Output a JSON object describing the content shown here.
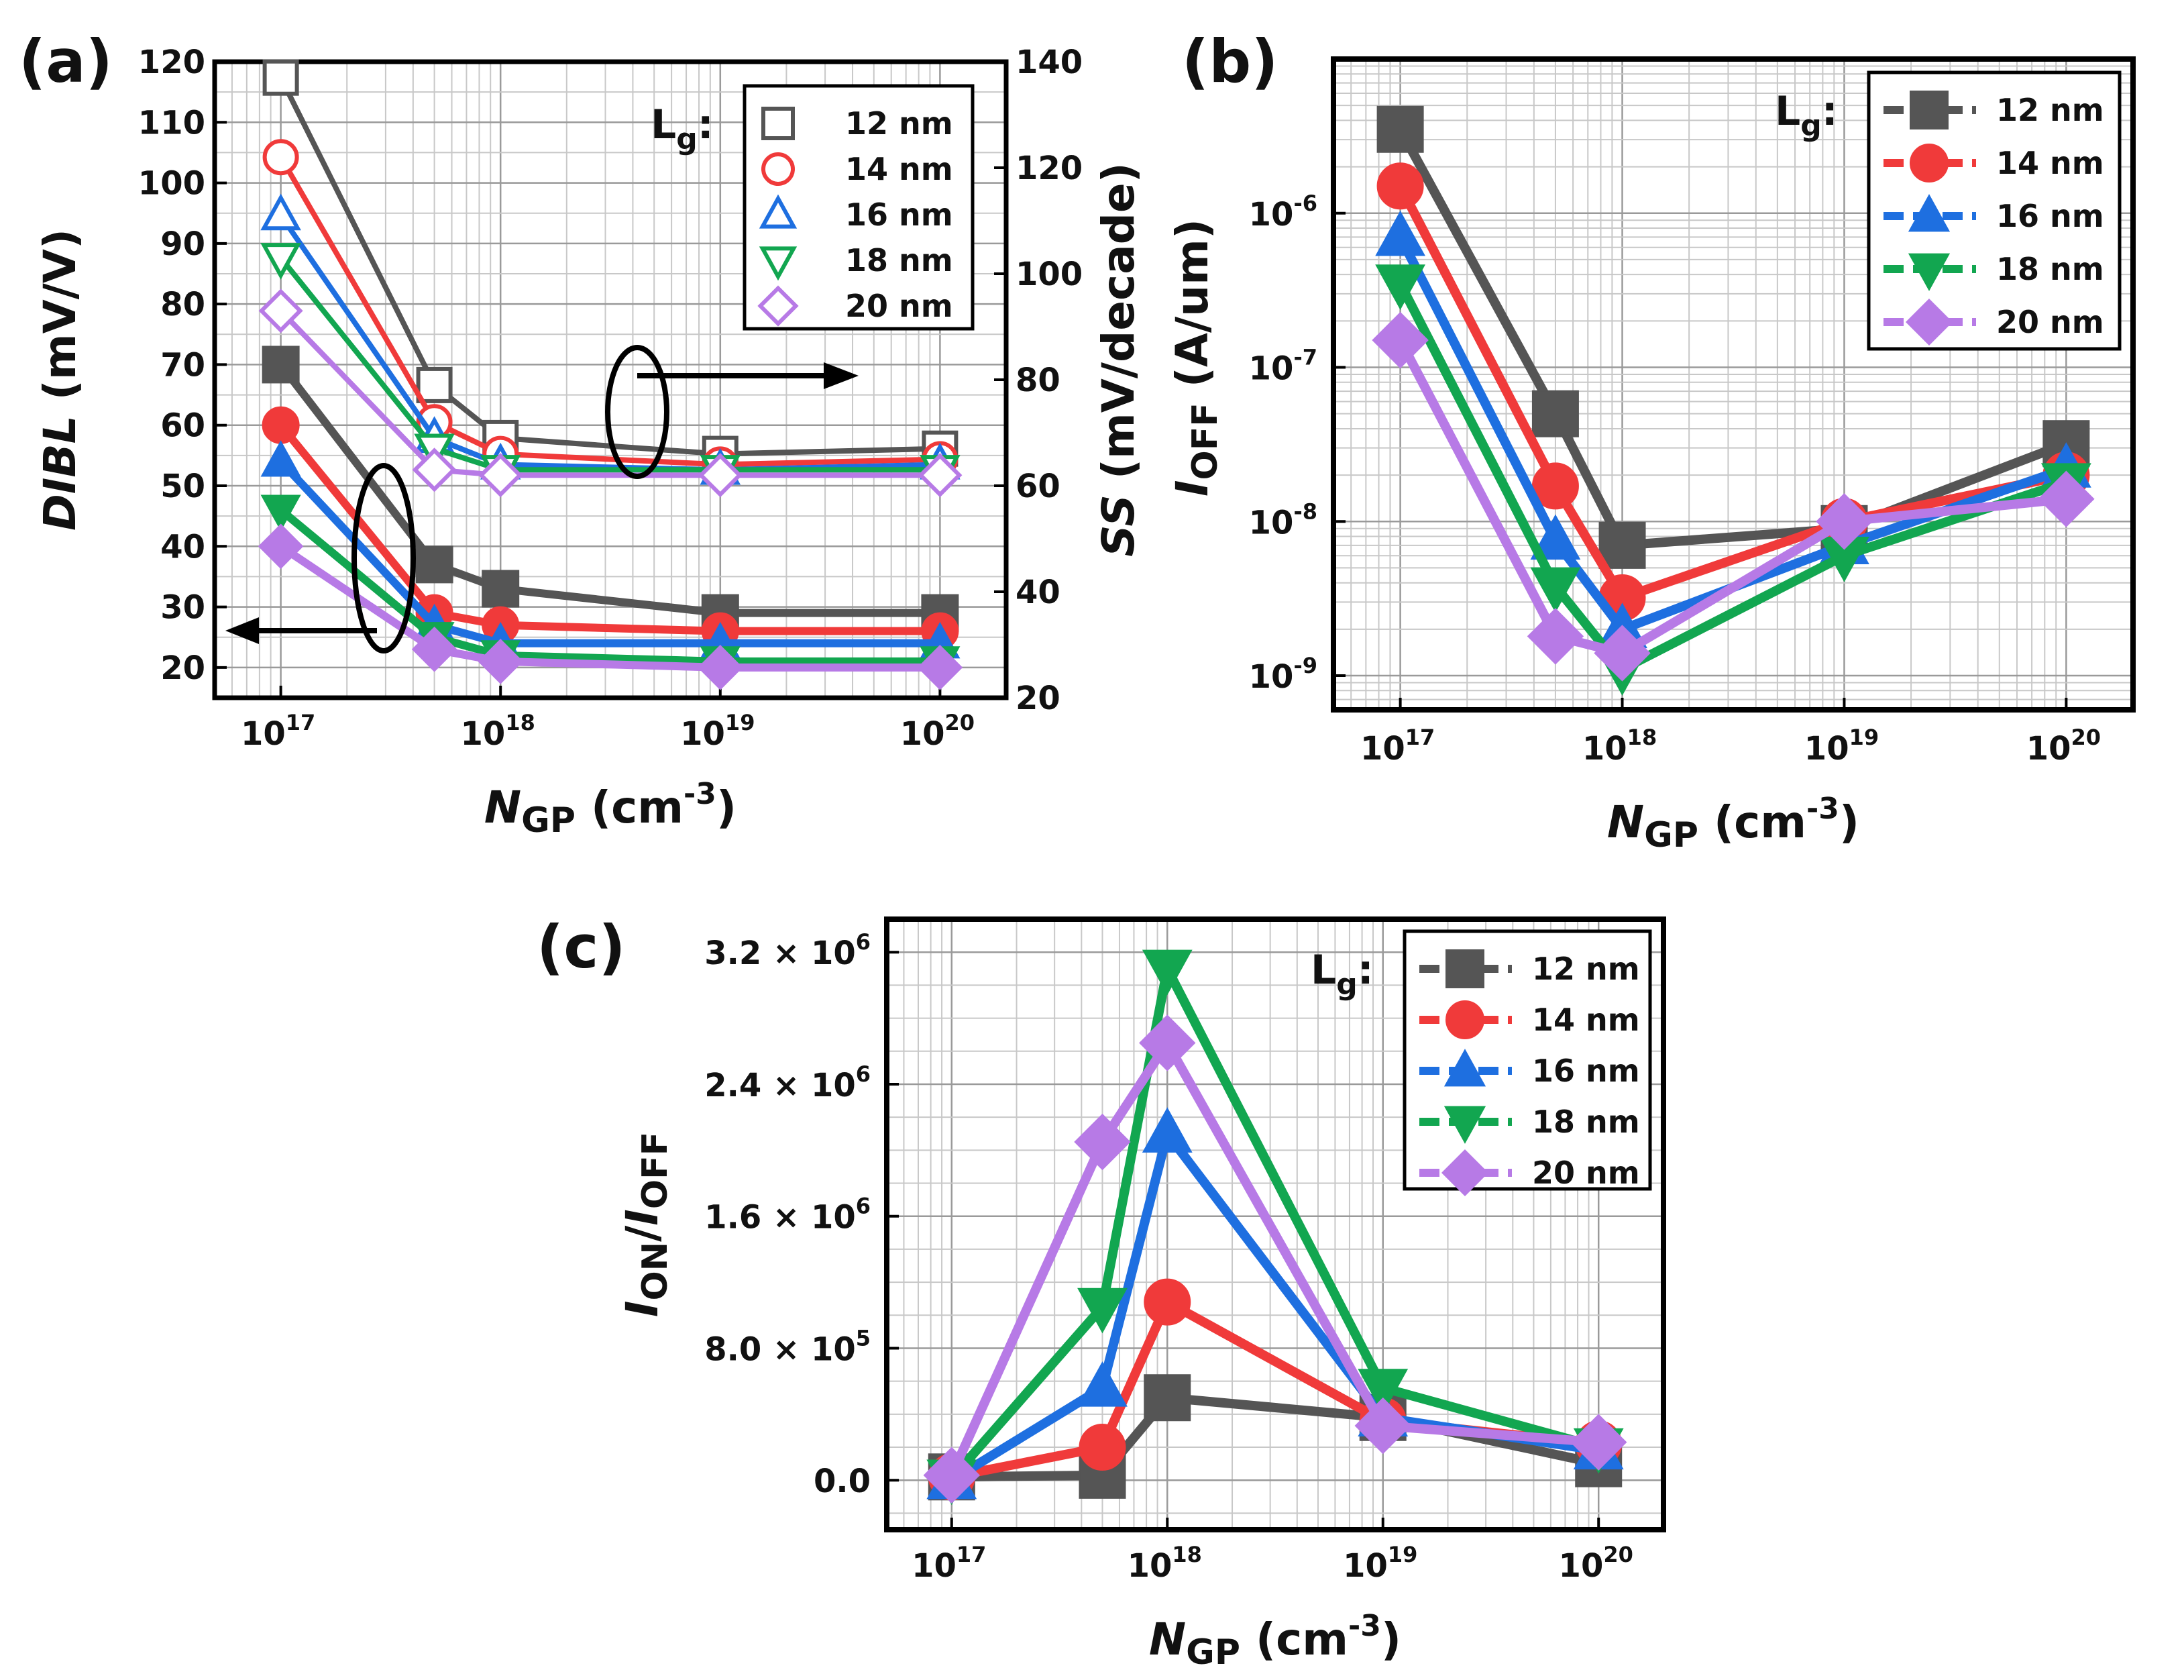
{
  "colors": {
    "12 nm": "#555555",
    "14 nm": "#f03a3a",
    "16 nm": "#1e6fe0",
    "18 nm": "#12a650",
    "20 nm": "#b77ae6"
  },
  "chart_data": [
    {
      "panel": "(a)",
      "type": "line",
      "xscale": "log",
      "x": [
        1e+17,
        5e+17,
        1e+18,
        1e+19,
        1e+20
      ],
      "xlim": [
        5e+16,
        2e+20
      ],
      "xticks": [
        "10",
        "10",
        "10",
        "10"
      ],
      "xtick_exps": [
        "17",
        "18",
        "19",
        "20"
      ],
      "xlabel": {
        "italic": "N",
        "sub": "GP",
        "rest": " (cm",
        "sup": "-3",
        "close": ")"
      },
      "ylabel_left": {
        "italic": "DIBL",
        "rest": " (mV/V)"
      },
      "ylabel_right": {
        "italic": "SS",
        "rest": " (mV/decade)"
      },
      "ylim_left": [
        15,
        120
      ],
      "yticks_left": [
        "20",
        "30",
        "40",
        "50",
        "60",
        "70",
        "80",
        "90",
        "100",
        "110",
        "120"
      ],
      "ylim_right": [
        20,
        140
      ],
      "yticks_right": [
        "20",
        "40",
        "60",
        "80",
        "100",
        "120",
        "140"
      ],
      "legend_title": "L",
      "legend_title_sub": "g",
      "legend_title_colon": ":",
      "dibl_series": [
        {
          "name": "12 nm",
          "values": [
            70,
            37,
            33,
            29,
            29
          ]
        },
        {
          "name": "14 nm",
          "values": [
            60,
            29,
            27,
            26,
            26
          ]
        },
        {
          "name": "16 nm",
          "values": [
            54,
            27,
            24,
            24,
            24
          ]
        },
        {
          "name": "18 nm",
          "values": [
            46,
            25,
            22,
            21,
            21
          ]
        },
        {
          "name": "20 nm",
          "values": [
            40,
            23,
            21,
            20,
            20
          ]
        }
      ],
      "ss_series": [
        {
          "name": "12 nm",
          "values": [
            137,
            79,
            69,
            66,
            67
          ]
        },
        {
          "name": "14 nm",
          "values": [
            122,
            72,
            66,
            64,
            65
          ]
        },
        {
          "name": "16 nm",
          "values": [
            111,
            69,
            64,
            63,
            64
          ]
        },
        {
          "name": "18 nm",
          "values": [
            103,
            67,
            63,
            63,
            63
          ]
        },
        {
          "name": "20 nm",
          "values": [
            93,
            63,
            62,
            62,
            62
          ]
        }
      ]
    },
    {
      "panel": "(b)",
      "type": "line",
      "xscale": "log",
      "yscale": "log",
      "x": [
        1e+17,
        5e+17,
        1e+18,
        1e+19,
        1e+20
      ],
      "xlim": [
        5e+16,
        2e+20
      ],
      "xticks": [
        "10",
        "10",
        "10",
        "10"
      ],
      "xtick_exps": [
        "17",
        "18",
        "19",
        "20"
      ],
      "ylim": [
        6e-10,
        1e-05
      ],
      "yticks": [
        "10",
        "10",
        "10",
        "10"
      ],
      "ytick_exps": [
        "-9",
        "-8",
        "-7",
        "-6"
      ],
      "xlabel": {
        "italic": "N",
        "sub": "GP",
        "rest": " (cm",
        "sup": "-3",
        "close": ")"
      },
      "ylabel": {
        "italic": "I",
        "sub": "OFF",
        "rest": " (A/um)"
      },
      "legend_title": "L",
      "legend_title_sub": "g",
      "legend_title_colon": ":",
      "series": [
        {
          "name": "12 nm",
          "values": [
            3.5e-06,
            5e-08,
            7e-09,
            9e-09,
            3.2e-08
          ]
        },
        {
          "name": "14 nm",
          "values": [
            1.5e-06,
            1.7e-08,
            3.2e-09,
            1e-08,
            2e-08
          ]
        },
        {
          "name": "16 nm",
          "values": [
            7e-07,
            7.5e-09,
            2e-09,
            7e-09,
            2.2e-08
          ]
        },
        {
          "name": "18 nm",
          "values": [
            3.5e-07,
            3.8e-09,
            1.1e-09,
            6e-09,
            1.8e-08
          ]
        },
        {
          "name": "20 nm",
          "values": [
            1.5e-07,
            1.8e-09,
            1.4e-09,
            1e-08,
            1.4e-08
          ]
        }
      ]
    },
    {
      "panel": "(c)",
      "type": "line",
      "xscale": "log",
      "x": [
        1e+17,
        5e+17,
        1e+18,
        1e+19,
        1e+20
      ],
      "xlim": [
        5e+16,
        2e+20
      ],
      "xticks": [
        "10",
        "10",
        "10",
        "10"
      ],
      "xtick_exps": [
        "17",
        "18",
        "19",
        "20"
      ],
      "ylim": [
        -300000,
        3400000
      ],
      "yticks": [
        "0.0",
        "8.0 × 10",
        "1.6 × 10",
        "2.4 × 10",
        "3.2 × 10"
      ],
      "ytick_exps": [
        "",
        "5",
        "6",
        "6",
        "6"
      ],
      "xlabel": {
        "italic": "N",
        "sub": "GP",
        "rest": " (cm",
        "sup": "-3",
        "close": ")"
      },
      "ylabel": {
        "italic1": "I",
        "sub1": "ON",
        "slash": "/",
        "italic2": "I",
        "sub2": "OFF"
      },
      "legend_title": "L",
      "legend_title_sub": "g",
      "legend_title_colon": ":",
      "series": [
        {
          "name": "12 nm",
          "values": [
            20000,
            30000,
            500000,
            380000,
            100000
          ]
        },
        {
          "name": "14 nm",
          "values": [
            20000,
            200000,
            1080000,
            360000,
            220000
          ]
        },
        {
          "name": "16 nm",
          "values": [
            0,
            560000,
            2100000,
            380000,
            180000
          ]
        },
        {
          "name": "18 nm",
          "values": [
            10000,
            1050000,
            3100000,
            560000,
            200000
          ]
        },
        {
          "name": "20 nm",
          "values": [
            30000,
            2050000,
            2650000,
            330000,
            230000
          ]
        }
      ]
    }
  ]
}
